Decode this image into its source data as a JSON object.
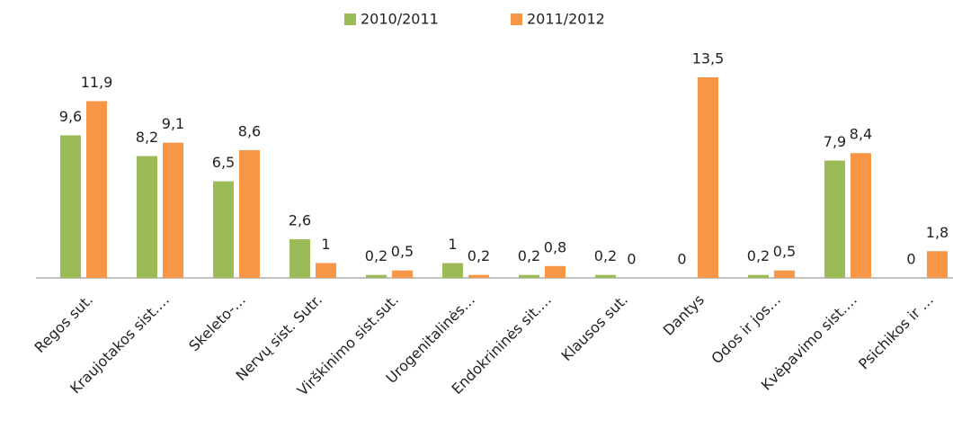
{
  "chart_data": {
    "type": "bar",
    "categories": [
      "Regos sut.",
      "Kraujotakos sist.…",
      "Skeleto-…",
      "Nervų sist. Sutr.",
      "Virškinimo sist.sut.",
      "Urogenitalinės…",
      "Endokrininės sit.…",
      "Klausos sut.",
      "Dantys",
      "Odos ir jos…",
      "Kvėpavimo sist.…",
      "Psichikos ir …"
    ],
    "series": [
      {
        "name": "2010/2011",
        "color": "#9bbb59",
        "values": [
          9.6,
          8.2,
          6.5,
          2.6,
          0.2,
          1,
          0.2,
          0.2,
          0,
          0.2,
          7.9,
          0
        ],
        "value_labels": [
          "9,6",
          "8,2",
          "6,5",
          "2,6",
          "0,2",
          "1",
          "0,2",
          "0,2",
          "0",
          "0,2",
          "7,9",
          "0"
        ]
      },
      {
        "name": "2011/2012",
        "color": "#f79646",
        "values": [
          11.9,
          9.1,
          8.6,
          1,
          0.5,
          0.2,
          0.8,
          0,
          13.5,
          0.5,
          8.4,
          1.8
        ],
        "value_labels": [
          "11,9",
          "9,1",
          "8,6",
          "1",
          "0,5",
          "0,2",
          "0,8",
          "0",
          "13,5",
          "0,5",
          "8,4",
          "1,8"
        ]
      }
    ],
    "legend": "top"
  }
}
